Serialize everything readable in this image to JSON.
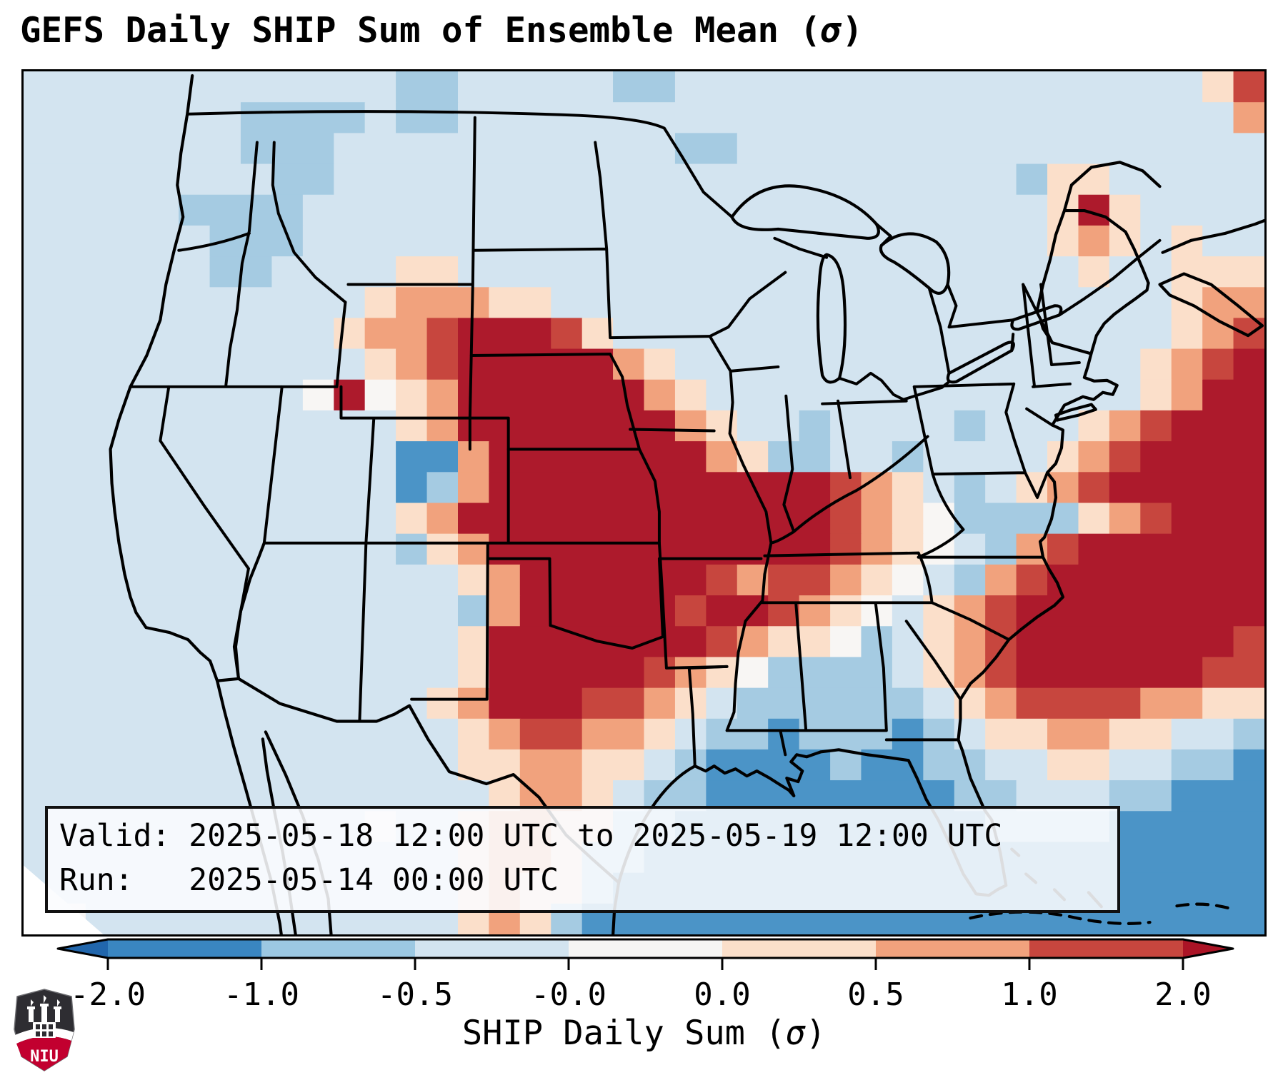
{
  "title": "GEFS Daily SHIP Sum of Ensemble Mean (σ)",
  "info_box": {
    "line1": "Valid: 2025-05-18 12:00 UTC to 2025-05-19 12:00 UTC",
    "line2": "Run:   2025-05-14 00:00 UTC"
  },
  "colorbar": {
    "label": "SHIP Daily Sum (σ)",
    "ticks": [
      "-2.0",
      "-1.0",
      "-0.5",
      "-0.0",
      "0.0",
      "0.5",
      "1.0",
      "2.0"
    ],
    "segment_colors": [
      "#3a86c1",
      "#9cc8e2",
      "#d3e4f0",
      "#f6f5f3",
      "#fbdfca",
      "#f1a27d",
      "#c7463e"
    ],
    "left_arrow_color": "#2166ac",
    "right_arrow_color": "#ab1426"
  },
  "logo": {
    "text": "NIU",
    "red": "#c2002f",
    "dark": "#2e2d32"
  },
  "chart_data": {
    "type": "heatmap",
    "title": "GEFS Daily SHIP Sum of Ensemble Mean (σ)",
    "colorbar_label": "SHIP Daily Sum (σ)",
    "colorbar_ticks": [
      -2.0,
      -1.0,
      -0.5,
      -0.0,
      0.0,
      0.5,
      1.0,
      2.0
    ],
    "valid": "2025-05-18 12:00 UTC to 2025-05-19 12:00 UTC",
    "run": "2025-05-14 00:00 UTC",
    "region": "CONUS (United States, pcolormesh over Lambert-style projection)",
    "legend_bins": {
      "D": "below -2.0 sigma",
      "B": "-2.0 to -1.0",
      "b": "-1.0 to -0.5",
      "p": "-0.5 to -0.0",
      "w": "-0.0 to 0.0",
      "o": "0.0 to 0.5",
      "s": "0.5 to 1.0",
      "r": "1.0 to 2.0",
      "R": "above 2.0 sigma"
    },
    "palette": {
      "D": "#2166ac",
      "B": "#4b94c7",
      "b": "#a5cbe2",
      "p": "#d3e4f0",
      "w": "#f8f6f4",
      "o": "#fbdfca",
      "s": "#f1a27d",
      "r": "#c7463e",
      "R": "#ad1a2c"
    },
    "grid_cols": 40,
    "grid_rows": 28,
    "grid_rle": [
      "p12 b2 p5 b2 p17 o1 r1",
      "p7 b4 p1 b2 p25 s1",
      "p7 b3 p11 b2 p17",
      "p8 b2 p22 b1 o2 p5",
      "p5 b4 p24 o1 R1 o1 p4",
      "p6 b3 p24 o1 s1 o1 p1 o1 p2",
      "p6 b2 p4 o2 p20 o1 p2 o3",
      "p11 o1 s3 o2 p20 o1 s2",
      "p10 o1 s2 r1 R3 r1 o1 p18 o1 s1 r1",
      "p11 o1 s1 r1 R5 s1 o1 p15 o1 s1 r1 R1",
      "p9 w1 R1 w1 o1 s1 R6 s1 o1 p14 o1 s1 R2",
      "p12 o1 s1 R7 s1 o1 p2 b1 p4 b1 p3 o1 s1 r1 R3",
      "p12 B2 s1 R7 s1 o1 b2 p2 b1 p4 o1 s1 r1 R4",
      "p12 B1 b1 s1 R11 r1 s1 o1 p1 b1 p1 o1 s1 r1 R5",
      "p12 o1 s1 R12 r1 s1 o1 w1 b4 o1 s1 r1 R3",
      "p12 b1 o1 s1 R11 r1 s1 o1 w1 p1 b1 s1 r1 R6",
      "p14 o1 s1 R6 r1 s1 r2 s1 o1 w1 p1 b1 s1 r1 R7",
      "p14 b1 s1 R5 r1 R2 r1 s1 o1 w1 p1 o1 s1 r1 R8",
      "p14 o1 R7 r1 s1 o2 w1 b1 p1 o1 s1 r1 R7 r1",
      "p14 o1 R5 r1 s1 o1 w1 b4 p1 o1 s1 r1 R6 r2",
      "p13 o1 s1 R3 r2 s1 o1 p1 b6 p1 o1 s1 r4 s2 o2",
      "p14 o1 s1 r2 s2 o1 p1 b2 B1 b3 B1 b1 p1 o2 s2 o2 p2 b1",
      "p14 o2 s2 o2 p1 b1 B4 b1 B2 b2 p2 o2 p2 b2 B1",
      "p15 o1 s2 o1 p1 b2 B8 b2 p3 b2 B3",
      "p11 w1 p2 o1 s2 o2 b2 B10 b4 B5",
      "p14 o1 s2 o1 b2 B20",
      "p14 o1 s1 o2 b1 B21",
      "w2 p12 o1 s1 o1 b1 B22"
    ],
    "features": [
      "Large >2 sigma (dark red) corridor from the Nebraska/South Dakota plains through Kansas, Oklahoma, Texas, Missouri, Arkansas, Louisiana, Mississippi, Alabama and Tennessee",
      "Secondary >2 sigma maximum offshore over the western Atlantic east of the Carolinas",
      "Orange anomaly over northwest Wyoming; isolated red pixel in Utah",
      "Weak negative (blue) anomalies over most of the West, Midwest, Northeast, Gulf of Mexico, Florida and the Caribbean"
    ]
  }
}
